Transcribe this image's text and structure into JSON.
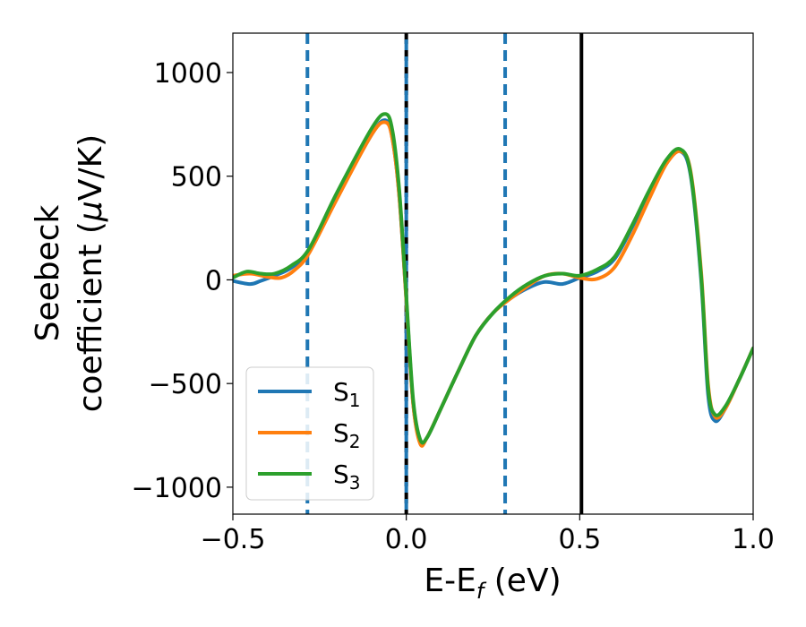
{
  "chart_data": {
    "type": "line",
    "xlabel": {
      "main": "E-E",
      "sub": "f",
      "unit": " (eV)"
    },
    "ylabel": {
      "line1": "Seebeck",
      "line2_main": "coefficient  (",
      "line2_mu": "μ",
      "line2_unit": "V/K)"
    },
    "xlim": [
      -0.5,
      1.0
    ],
    "ylim": [
      -1130,
      1190
    ],
    "xticks": [
      -0.5,
      0.0,
      0.5,
      1.0
    ],
    "xtick_labels": [
      "−0.5",
      "0.0",
      "0.5",
      "1.0"
    ],
    "yticks": [
      -1000,
      -500,
      0,
      500,
      1000
    ],
    "ytick_labels": [
      "−1000",
      "−500",
      "0",
      "500",
      "1000"
    ],
    "grid": false,
    "legend_position": "lower-left",
    "vlines": [
      {
        "x": -0.285,
        "color": "#1f77b4",
        "style": "dashed"
      },
      {
        "x": 0.0,
        "color": "#000000",
        "style": "solid-dashed-overlay"
      },
      {
        "x": 0.285,
        "color": "#1f77b4",
        "style": "dashed"
      },
      {
        "x": 0.505,
        "color": "#000000",
        "style": "solid"
      }
    ],
    "series": [
      {
        "name": "S1",
        "label_main": "S",
        "label_sub": "1",
        "color": "#1f77b4",
        "x": [
          -0.5,
          -0.45,
          -0.42,
          -0.38,
          -0.33,
          -0.28,
          -0.2,
          -0.1,
          -0.06,
          -0.04,
          -0.02,
          0.0,
          0.02,
          0.04,
          0.06,
          0.1,
          0.15,
          0.2,
          0.25,
          0.3,
          0.35,
          0.4,
          0.45,
          0.5,
          0.55,
          0.6,
          0.65,
          0.7,
          0.75,
          0.79,
          0.82,
          0.85,
          0.87,
          0.89,
          0.92,
          0.96,
          1.0
        ],
        "y": [
          -5,
          -20,
          -5,
          20,
          60,
          140,
          400,
          700,
          770,
          680,
          400,
          -100,
          -600,
          -780,
          -760,
          -620,
          -440,
          -270,
          -160,
          -90,
          -40,
          -10,
          -20,
          10,
          40,
          100,
          250,
          420,
          570,
          620,
          500,
          0,
          -550,
          -680,
          -620,
          -480,
          -330
        ]
      },
      {
        "name": "S2",
        "label_main": "S",
        "label_sub": "2",
        "color": "#ff7f0e",
        "x": [
          -0.5,
          -0.45,
          -0.4,
          -0.36,
          -0.32,
          -0.28,
          -0.2,
          -0.1,
          -0.06,
          -0.04,
          -0.02,
          0.0,
          0.02,
          0.04,
          0.06,
          0.1,
          0.15,
          0.2,
          0.25,
          0.3,
          0.35,
          0.4,
          0.45,
          0.5,
          0.55,
          0.6,
          0.65,
          0.7,
          0.75,
          0.79,
          0.82,
          0.85,
          0.87,
          0.89,
          0.92,
          0.96,
          1.0
        ],
        "y": [
          20,
          30,
          15,
          10,
          50,
          130,
          390,
          700,
          760,
          680,
          400,
          -100,
          -600,
          -790,
          -760,
          -620,
          -440,
          -270,
          -160,
          -90,
          -30,
          20,
          30,
          10,
          5,
          60,
          210,
          390,
          560,
          620,
          520,
          40,
          -500,
          -660,
          -620,
          -480,
          -330
        ]
      },
      {
        "name": "S3",
        "label_main": "S",
        "label_sub": "3",
        "color": "#2ca02c",
        "x": [
          -0.5,
          -0.46,
          -0.42,
          -0.38,
          -0.33,
          -0.28,
          -0.2,
          -0.1,
          -0.06,
          -0.04,
          -0.02,
          0.0,
          0.02,
          0.04,
          0.06,
          0.1,
          0.15,
          0.2,
          0.25,
          0.3,
          0.35,
          0.4,
          0.45,
          0.5,
          0.55,
          0.6,
          0.65,
          0.7,
          0.75,
          0.79,
          0.82,
          0.85,
          0.87,
          0.89,
          0.92,
          0.96,
          1.0
        ],
        "y": [
          10,
          40,
          30,
          30,
          70,
          150,
          420,
          730,
          800,
          720,
          430,
          -80,
          -580,
          -770,
          -760,
          -620,
          -440,
          -270,
          -160,
          -80,
          -20,
          20,
          30,
          20,
          50,
          110,
          260,
          430,
          580,
          630,
          510,
          20,
          -520,
          -650,
          -610,
          -480,
          -330
        ]
      }
    ]
  }
}
